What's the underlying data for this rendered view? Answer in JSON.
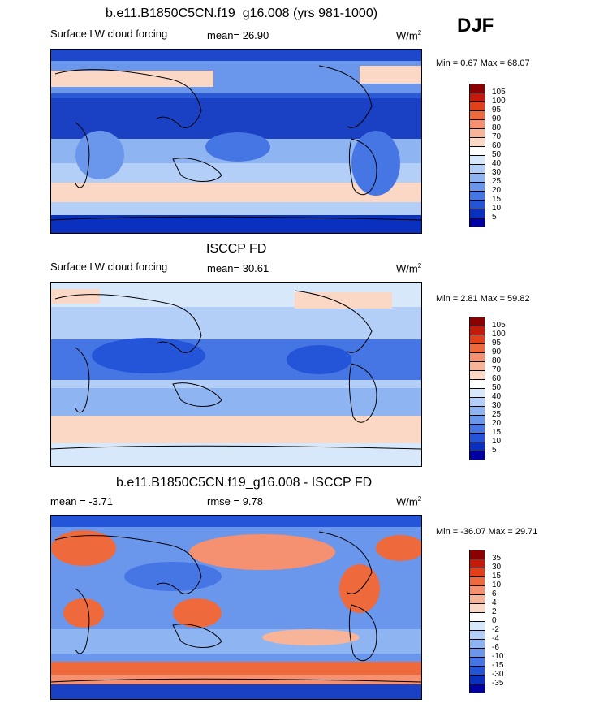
{
  "season": "DJF",
  "panels": [
    {
      "title": "b.e11.B1850C5CN.f19_g16.008 (yrs 981-1000)",
      "subtitle": "Surface LW cloud forcing",
      "stat": "mean=  26.90",
      "units": "W/m",
      "units_sup": "2",
      "minmax": "Min =   0.67 Max =  68.07"
    },
    {
      "title": "ISCCP FD",
      "subtitle": "Surface LW cloud forcing",
      "stat": "mean=  30.61",
      "units": "W/m",
      "units_sup": "2",
      "minmax": "Min =   2.81 Max =  59.82"
    },
    {
      "title": "b.e11.B1850C5CN.f19_g16.008 - ISCCP FD",
      "subtitle": "mean =  -3.71",
      "stat": "rmse =   9.78",
      "units": "W/m",
      "units_sup": "2",
      "minmax": "Min = -36.07 Max =  29.71"
    }
  ],
  "colorbars": {
    "absolute": {
      "labels": [
        "105",
        "100",
        "95",
        "90",
        "80",
        "70",
        "60",
        "50",
        "40",
        "30",
        "25",
        "20",
        "15",
        "10",
        "5"
      ],
      "colors": [
        "#8b0000",
        "#c41a0c",
        "#e0401a",
        "#ee6a3c",
        "#f59070",
        "#f8b498",
        "#fbd8c6",
        "#ffffff",
        "#d8e8fb",
        "#b4cff7",
        "#8fb4f2",
        "#6a96ec",
        "#4676e4",
        "#2454d8",
        "#0a30c0",
        "#0000a0"
      ]
    },
    "difference": {
      "labels": [
        "35",
        "30",
        "15",
        "10",
        "6",
        "4",
        "2",
        "0",
        "-2",
        "-4",
        "-6",
        "-10",
        "-15",
        "-30",
        "-35"
      ],
      "colors": [
        "#8b0000",
        "#c41a0c",
        "#e0401a",
        "#ee6a3c",
        "#f59070",
        "#f8b498",
        "#fbd8c6",
        "#ffffff",
        "#d8e8fb",
        "#b4cff7",
        "#8fb4f2",
        "#6a96ec",
        "#4676e4",
        "#2454d8",
        "#0a30c0",
        "#0000a0"
      ]
    }
  }
}
